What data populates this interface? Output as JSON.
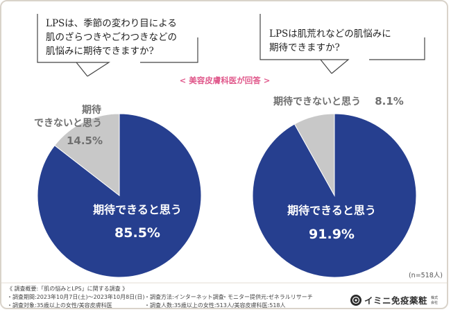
{
  "questions": {
    "left": [
      "LPSは、季節の変わり目による",
      "肌のざらつきやごわつきなどの",
      "肌悩みに期待できますか?"
    ],
    "right": [
      "LPSは肌荒れなどの肌悩みに",
      "期待できますか?"
    ]
  },
  "respondents_label": "< 美容皮膚科医が回答 >",
  "sample_note": "(n=518人)",
  "chart_data": [
    {
      "type": "pie",
      "categories": [
        "期待できると思う",
        "期待できないと思う"
      ],
      "values": [
        85.5,
        14.5
      ],
      "labels": {
        "expect": "期待できると思う",
        "expect_pct": "85.5%",
        "not_expect_line1": "期待",
        "not_expect_line2": "できないと思う",
        "not_expect_pct": "14.5%"
      },
      "colors": [
        "#263f8f",
        "#c8c8c8"
      ]
    },
    {
      "type": "pie",
      "categories": [
        "期待できると思う",
        "期待できないと思う"
      ],
      "values": [
        91.9,
        8.1
      ],
      "labels": {
        "expect": "期待できると思う",
        "expect_pct": "91.9%",
        "not_expect": "期待できないと思う",
        "not_expect_pct": "8.1%"
      },
      "colors": [
        "#263f8f",
        "#c8c8c8"
      ]
    }
  ],
  "footer": {
    "title": "《 調査概要:「肌の悩みとLPS」に関する調査 》",
    "period": "・調査期間:2023年10月7日(土)〜2023年10月8日(日)",
    "method": "・調査方法:インターネット調査",
    "provider": "・モニター提供元:ゼネラルリサーチ",
    "target": "・調査対象:35歳以上の女性/美容皮膚科医",
    "people": "・調査人数:35歳以上の女性:513人/美容皮膚科医:518人"
  },
  "brand": {
    "name": "イミニ免疫薬粧",
    "corp_top": "株式",
    "corp_bottom": "会社"
  }
}
